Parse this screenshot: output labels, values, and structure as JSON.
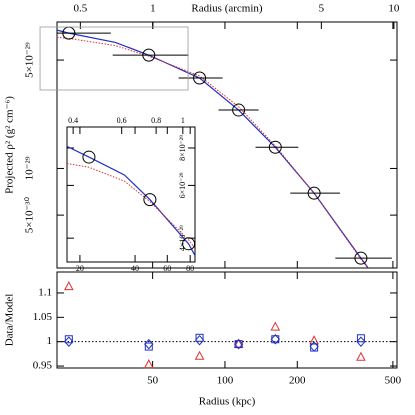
{
  "chart_data": [
    {
      "type": "scatter",
      "x_label": "Radius (arcmin)",
      "y_label": "Projected ρ² (g² cm⁻⁶)",
      "xscale": "log",
      "yscale": "log",
      "xlim": [
        20,
        520
      ],
      "ylim": [
        2.28e-30,
        8.8e-29
      ],
      "x2lim": [
        0.4,
        10.3
      ],
      "x2ticks": [
        0.5,
        1,
        5,
        10
      ],
      "yticks": [
        {
          "value": 5e-30,
          "label": "5×10⁻³⁰"
        },
        {
          "value": 1e-29,
          "label": "10⁻²⁹"
        },
        {
          "value": 5e-29,
          "label": "5×10⁻²⁹"
        }
      ],
      "data": {
        "color": "#000000",
        "marker": "circle",
        "x": [
          22.4,
          48.2,
          78.4,
          114,
          162,
          235,
          368
        ],
        "values": [
          7.46e-29,
          5.38e-29,
          3.83e-29,
          2.38e-29,
          1.37e-29,
          6.93e-30,
          2.64e-30
        ],
        "x_low": [
          20,
          34.1,
          64.1,
          94.0,
          134,
          187,
          288
        ],
        "x_high": [
          33.5,
          70.6,
          97.8,
          138,
          202,
          301,
          495
        ]
      },
      "models": [
        {
          "color": "#2030c0",
          "style": "solid",
          "x": [
            20,
            22.4,
            35,
            48.2,
            78.4,
            114,
            162,
            235,
            368,
            420
          ],
          "values": [
            7.8e-29,
            7.46e-29,
            6.5e-29,
            5.38e-29,
            3.83e-29,
            2.38e-29,
            1.37e-29,
            6.93e-30,
            2.64e-30,
            2e-30
          ]
        },
        {
          "color": "#e03030",
          "style": "dotted",
          "x": [
            20,
            22.4,
            35,
            48.2,
            78.4,
            114,
            162,
            235,
            368,
            420
          ],
          "values": [
            7e-29,
            6.9e-29,
            6.2e-29,
            5.3e-29,
            3.95e-29,
            2.5e-29,
            1.4e-29,
            6.9e-30,
            2.6e-30,
            2e-30
          ]
        }
      ]
    },
    {
      "type": "scatter",
      "xscale": "log",
      "yscale": "log",
      "xlim": [
        17,
        85
      ],
      "ylim": [
        3.33e-29,
        9.4e-29
      ],
      "xticks": [
        20,
        40,
        60,
        80
      ],
      "x2lim": [
        0.38,
        1.107
      ],
      "x2ticks": [
        0.4,
        0.6,
        0.8,
        1
      ],
      "yticks": [
        {
          "value": 4e-29,
          "label": "4×10⁻²⁹"
        },
        {
          "value": 6e-29,
          "label": "6×10⁻²⁹"
        },
        {
          "value": 8e-29,
          "label": "8×10⁻²⁹"
        }
      ],
      "data": {
        "color": "#000000",
        "marker": "circle",
        "x": [
          22.4,
          48.2,
          78.4
        ],
        "values": [
          7.46e-29,
          5.38e-29,
          3.83e-29
        ]
      },
      "models": [
        {
          "color": "#2030c0",
          "style": "solid",
          "x": [
            17,
            22.4,
            35,
            48.2,
            78.4,
            85
          ],
          "values": [
            8.1e-29,
            7.46e-29,
            6.5e-29,
            5.38e-29,
            3.83e-29,
            3.5e-29
          ]
        },
        {
          "color": "#e03030",
          "style": "dotted",
          "x": [
            17,
            22.4,
            35,
            48.2,
            78.4,
            85
          ],
          "values": [
            7.1e-29,
            6.9e-29,
            6.2e-29,
            5.3e-29,
            3.95e-29,
            3.7e-29
          ]
        }
      ]
    },
    {
      "type": "scatter",
      "x_label": "Radius (kpc)",
      "y_label": "Data/Model",
      "xscale": "log",
      "xlim": [
        20,
        520
      ],
      "xticks": [
        50,
        100,
        200,
        500
      ],
      "ylim": [
        0.946,
        1.143
      ],
      "yticks": [
        0.95,
        1,
        1.05,
        1.1
      ],
      "reference": 1,
      "x": [
        22.4,
        48.2,
        78.4,
        114,
        162,
        235,
        368
      ],
      "series": [
        {
          "marker": "triangle",
          "color": "#e03030",
          "values": [
            1.113,
            0.953,
            0.97,
            0.995,
            1.03,
            1.002,
            0.968
          ]
        },
        {
          "marker": "square",
          "color": "#2030c0",
          "values": [
            1.005,
            0.99,
            1.008,
            0.995,
            1.005,
            0.988,
            1.007
          ]
        },
        {
          "marker": "diamond",
          "color": "#2030c0",
          "values": [
            1.0,
            0.995,
            1.003,
            0.995,
            1.005,
            0.99,
            1.0
          ]
        }
      ]
    }
  ]
}
